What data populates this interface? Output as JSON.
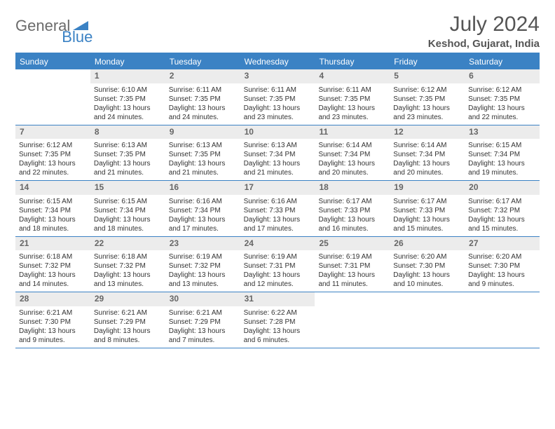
{
  "logo": {
    "text1": "General",
    "text2": "Blue"
  },
  "title": "July 2024",
  "location": "Keshod, Gujarat, India",
  "colors": {
    "accent": "#3b82c4",
    "header_bg": "#3b82c4",
    "header_text": "#ffffff",
    "daynum_bg": "#ececec",
    "daynum_text": "#666666",
    "body_text": "#333333",
    "logo_gray": "#6b6b6b"
  },
  "weekdays": [
    "Sunday",
    "Monday",
    "Tuesday",
    "Wednesday",
    "Thursday",
    "Friday",
    "Saturday"
  ],
  "weeks": [
    [
      null,
      {
        "n": "1",
        "sr": "Sunrise: 6:10 AM",
        "ss": "Sunset: 7:35 PM",
        "d1": "Daylight: 13 hours",
        "d2": "and 24 minutes."
      },
      {
        "n": "2",
        "sr": "Sunrise: 6:11 AM",
        "ss": "Sunset: 7:35 PM",
        "d1": "Daylight: 13 hours",
        "d2": "and 24 minutes."
      },
      {
        "n": "3",
        "sr": "Sunrise: 6:11 AM",
        "ss": "Sunset: 7:35 PM",
        "d1": "Daylight: 13 hours",
        "d2": "and 23 minutes."
      },
      {
        "n": "4",
        "sr": "Sunrise: 6:11 AM",
        "ss": "Sunset: 7:35 PM",
        "d1": "Daylight: 13 hours",
        "d2": "and 23 minutes."
      },
      {
        "n": "5",
        "sr": "Sunrise: 6:12 AM",
        "ss": "Sunset: 7:35 PM",
        "d1": "Daylight: 13 hours",
        "d2": "and 23 minutes."
      },
      {
        "n": "6",
        "sr": "Sunrise: 6:12 AM",
        "ss": "Sunset: 7:35 PM",
        "d1": "Daylight: 13 hours",
        "d2": "and 22 minutes."
      }
    ],
    [
      {
        "n": "7",
        "sr": "Sunrise: 6:12 AM",
        "ss": "Sunset: 7:35 PM",
        "d1": "Daylight: 13 hours",
        "d2": "and 22 minutes."
      },
      {
        "n": "8",
        "sr": "Sunrise: 6:13 AM",
        "ss": "Sunset: 7:35 PM",
        "d1": "Daylight: 13 hours",
        "d2": "and 21 minutes."
      },
      {
        "n": "9",
        "sr": "Sunrise: 6:13 AM",
        "ss": "Sunset: 7:35 PM",
        "d1": "Daylight: 13 hours",
        "d2": "and 21 minutes."
      },
      {
        "n": "10",
        "sr": "Sunrise: 6:13 AM",
        "ss": "Sunset: 7:34 PM",
        "d1": "Daylight: 13 hours",
        "d2": "and 21 minutes."
      },
      {
        "n": "11",
        "sr": "Sunrise: 6:14 AM",
        "ss": "Sunset: 7:34 PM",
        "d1": "Daylight: 13 hours",
        "d2": "and 20 minutes."
      },
      {
        "n": "12",
        "sr": "Sunrise: 6:14 AM",
        "ss": "Sunset: 7:34 PM",
        "d1": "Daylight: 13 hours",
        "d2": "and 20 minutes."
      },
      {
        "n": "13",
        "sr": "Sunrise: 6:15 AM",
        "ss": "Sunset: 7:34 PM",
        "d1": "Daylight: 13 hours",
        "d2": "and 19 minutes."
      }
    ],
    [
      {
        "n": "14",
        "sr": "Sunrise: 6:15 AM",
        "ss": "Sunset: 7:34 PM",
        "d1": "Daylight: 13 hours",
        "d2": "and 18 minutes."
      },
      {
        "n": "15",
        "sr": "Sunrise: 6:15 AM",
        "ss": "Sunset: 7:34 PM",
        "d1": "Daylight: 13 hours",
        "d2": "and 18 minutes."
      },
      {
        "n": "16",
        "sr": "Sunrise: 6:16 AM",
        "ss": "Sunset: 7:34 PM",
        "d1": "Daylight: 13 hours",
        "d2": "and 17 minutes."
      },
      {
        "n": "17",
        "sr": "Sunrise: 6:16 AM",
        "ss": "Sunset: 7:33 PM",
        "d1": "Daylight: 13 hours",
        "d2": "and 17 minutes."
      },
      {
        "n": "18",
        "sr": "Sunrise: 6:17 AM",
        "ss": "Sunset: 7:33 PM",
        "d1": "Daylight: 13 hours",
        "d2": "and 16 minutes."
      },
      {
        "n": "19",
        "sr": "Sunrise: 6:17 AM",
        "ss": "Sunset: 7:33 PM",
        "d1": "Daylight: 13 hours",
        "d2": "and 15 minutes."
      },
      {
        "n": "20",
        "sr": "Sunrise: 6:17 AM",
        "ss": "Sunset: 7:32 PM",
        "d1": "Daylight: 13 hours",
        "d2": "and 15 minutes."
      }
    ],
    [
      {
        "n": "21",
        "sr": "Sunrise: 6:18 AM",
        "ss": "Sunset: 7:32 PM",
        "d1": "Daylight: 13 hours",
        "d2": "and 14 minutes."
      },
      {
        "n": "22",
        "sr": "Sunrise: 6:18 AM",
        "ss": "Sunset: 7:32 PM",
        "d1": "Daylight: 13 hours",
        "d2": "and 13 minutes."
      },
      {
        "n": "23",
        "sr": "Sunrise: 6:19 AM",
        "ss": "Sunset: 7:32 PM",
        "d1": "Daylight: 13 hours",
        "d2": "and 13 minutes."
      },
      {
        "n": "24",
        "sr": "Sunrise: 6:19 AM",
        "ss": "Sunset: 7:31 PM",
        "d1": "Daylight: 13 hours",
        "d2": "and 12 minutes."
      },
      {
        "n": "25",
        "sr": "Sunrise: 6:19 AM",
        "ss": "Sunset: 7:31 PM",
        "d1": "Daylight: 13 hours",
        "d2": "and 11 minutes."
      },
      {
        "n": "26",
        "sr": "Sunrise: 6:20 AM",
        "ss": "Sunset: 7:30 PM",
        "d1": "Daylight: 13 hours",
        "d2": "and 10 minutes."
      },
      {
        "n": "27",
        "sr": "Sunrise: 6:20 AM",
        "ss": "Sunset: 7:30 PM",
        "d1": "Daylight: 13 hours",
        "d2": "and 9 minutes."
      }
    ],
    [
      {
        "n": "28",
        "sr": "Sunrise: 6:21 AM",
        "ss": "Sunset: 7:30 PM",
        "d1": "Daylight: 13 hours",
        "d2": "and 9 minutes."
      },
      {
        "n": "29",
        "sr": "Sunrise: 6:21 AM",
        "ss": "Sunset: 7:29 PM",
        "d1": "Daylight: 13 hours",
        "d2": "and 8 minutes."
      },
      {
        "n": "30",
        "sr": "Sunrise: 6:21 AM",
        "ss": "Sunset: 7:29 PM",
        "d1": "Daylight: 13 hours",
        "d2": "and 7 minutes."
      },
      {
        "n": "31",
        "sr": "Sunrise: 6:22 AM",
        "ss": "Sunset: 7:28 PM",
        "d1": "Daylight: 13 hours",
        "d2": "and 6 minutes."
      },
      null,
      null,
      null
    ]
  ]
}
